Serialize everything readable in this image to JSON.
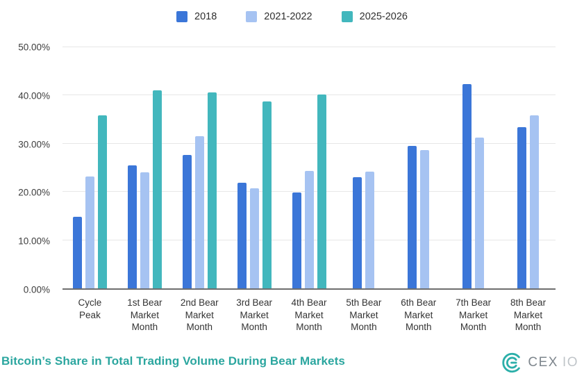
{
  "title": "Bitcoin’s Share in Total Trading Volume During Bear Markets",
  "colors": {
    "series_2018": "#3B76D8",
    "series_2021_2022": "#A6C3F2",
    "series_2025_2026": "#42B7BD",
    "title": "#2BA69F",
    "brand_mark": "#2BAFA9"
  },
  "legend": [
    {
      "label": "2018",
      "color": "#3B76D8"
    },
    {
      "label": "2021-2022",
      "color": "#A6C3F2"
    },
    {
      "label": "2025-2026",
      "color": "#42B7BD"
    }
  ],
  "chart_data": {
    "type": "bar",
    "categories": [
      "Cycle Peak",
      "1st Bear Market Month",
      "2nd Bear Market Month",
      "3rd Bear Market Month",
      "4th Bear Market Month",
      "5th Bear Market Month",
      "6th Bear Market Month",
      "7th Bear Market Month",
      "8th Bear Market Month"
    ],
    "series": [
      {
        "name": "2018",
        "color": "#3B76D8",
        "values": [
          14.8,
          25.5,
          27.7,
          21.9,
          19.9,
          23.1,
          29.5,
          42.4,
          33.4
        ]
      },
      {
        "name": "2021-2022",
        "color": "#A6C3F2",
        "values": [
          23.2,
          24.0,
          31.6,
          20.8,
          24.3,
          24.2,
          28.7,
          31.2,
          35.9
        ]
      },
      {
        "name": "2025-2026",
        "color": "#42B7BD",
        "values": [
          35.9,
          41.0,
          40.6,
          38.8,
          40.2,
          null,
          null,
          null,
          null
        ]
      }
    ],
    "title": "Bitcoin’s Share in Total Trading Volume During Bear Markets",
    "xlabel": "",
    "ylabel": "",
    "ylim": [
      0,
      50
    ],
    "yticks": [
      "0.00%",
      "10.00%",
      "20.00%",
      "30.00%",
      "40.00%",
      "50.00%"
    ],
    "grid": true,
    "legend_position": "top"
  },
  "branding": {
    "cex": "CEX",
    "io": "IO"
  }
}
